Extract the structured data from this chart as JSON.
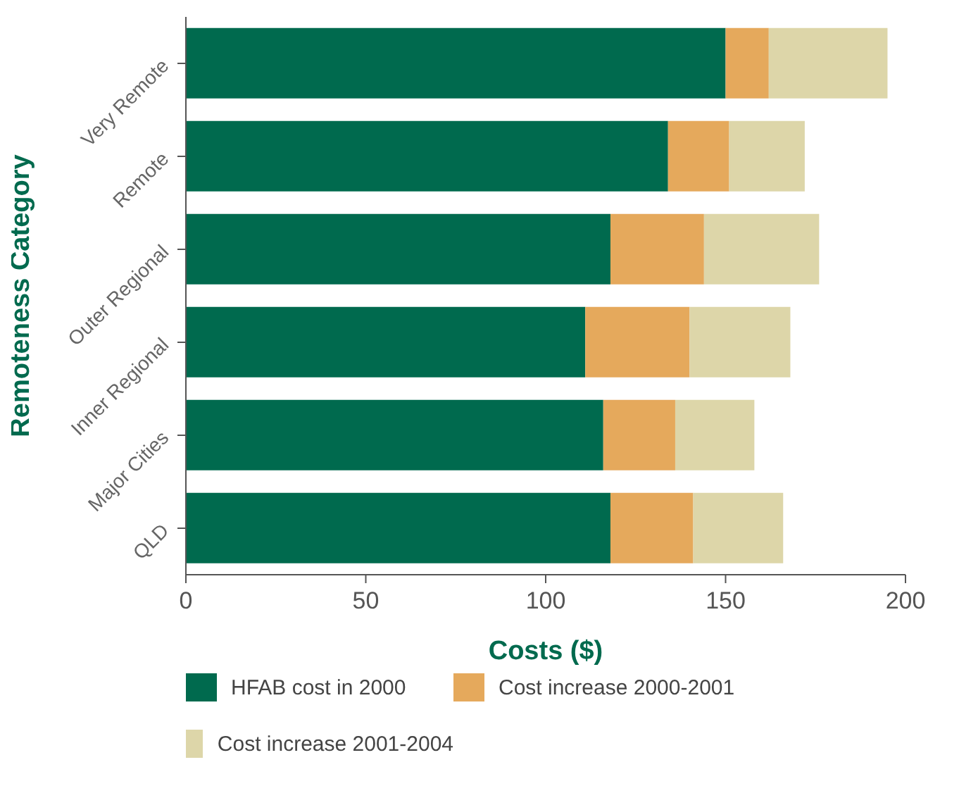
{
  "chart_data": {
    "type": "bar",
    "orientation": "horizontal",
    "stacked": true,
    "xlabel": "Costs ($)",
    "ylabel": "Remoteness Category",
    "categories": [
      "Very Remote",
      "Remote",
      "Outer Regional",
      "Inner Regional",
      "Major Cities",
      "QLD"
    ],
    "series": [
      {
        "name": "HFAB cost in 2000",
        "color": "#006a4e",
        "values": [
          150,
          134,
          118,
          111,
          116,
          118
        ]
      },
      {
        "name": "Cost increase 2000-2001",
        "color": "#e5a95c",
        "values": [
          12,
          17,
          26,
          29,
          20,
          23
        ]
      },
      {
        "name": "Cost increase 2001-2004",
        "color": "#ddd6a9",
        "values": [
          33,
          21,
          32,
          28,
          22,
          25
        ]
      }
    ],
    "xlim": [
      0,
      200
    ],
    "xticks": [
      0,
      50,
      100,
      150,
      200
    ],
    "legend": "bottom"
  }
}
